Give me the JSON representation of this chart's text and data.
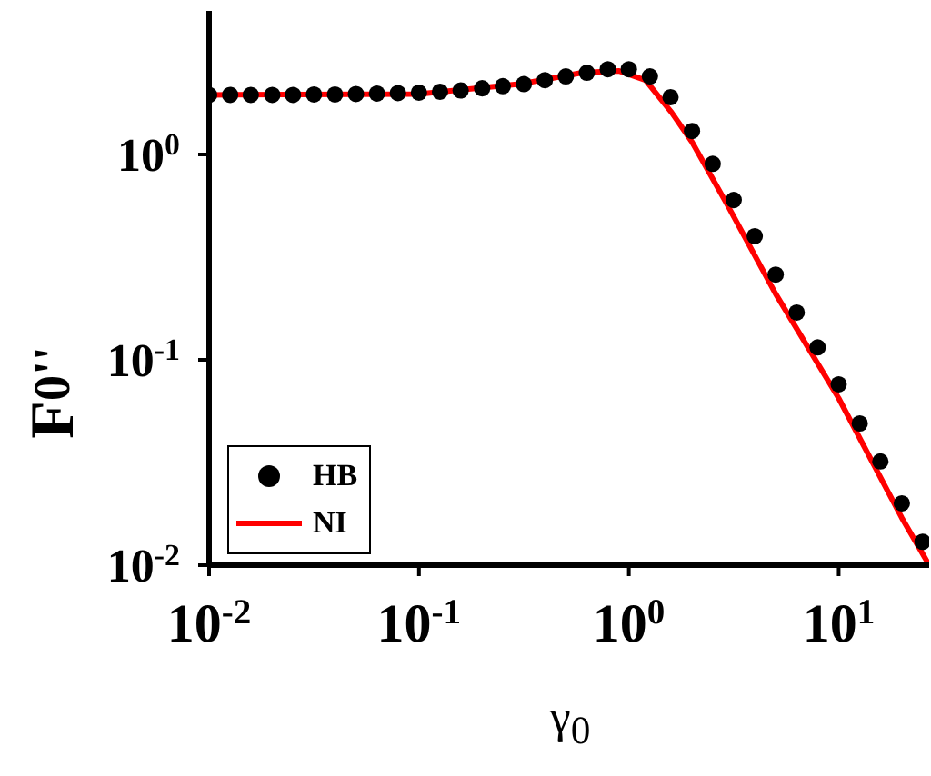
{
  "chart_data": {
    "type": "scatter",
    "xlabel": "γ$_{0}$",
    "ylabel": "F$_{0}$$^{''}$",
    "log": "xy",
    "xlim": [
      0.01,
      27
    ],
    "ylim": [
      0.01,
      5
    ],
    "xticks": [
      {
        "value": 0.01,
        "label": "10$^{-2}$"
      },
      {
        "value": 0.1,
        "label": "10$^{-1}$"
      },
      {
        "value": 1,
        "label": "10$^{0}$"
      },
      {
        "value": 10,
        "label": "10$^{1}$"
      }
    ],
    "yticks": [
      {
        "value": 0.01,
        "label": "10$^{-2}$"
      },
      {
        "value": 0.1,
        "label": "10$^{-1}$"
      },
      {
        "value": 1,
        "label": "10$^{0}$"
      }
    ],
    "legend": "bottom left",
    "series": [
      {
        "name": "HB",
        "marker": "circle",
        "color": "#000000",
        "x": [
          0.01,
          0.0126,
          0.0158,
          0.02,
          0.0251,
          0.0316,
          0.0398,
          0.0501,
          0.0631,
          0.0794,
          0.1,
          0.126,
          0.158,
          0.2,
          0.251,
          0.316,
          0.398,
          0.501,
          0.631,
          0.794,
          1,
          1.26,
          1.58,
          2,
          2.51,
          3.16,
          3.98,
          5.01,
          6.31,
          7.94,
          10,
          12.6,
          15.8,
          20,
          25.1
        ],
        "values": [
          1.95,
          1.95,
          1.95,
          1.95,
          1.95,
          1.96,
          1.96,
          1.97,
          1.98,
          1.99,
          2.0,
          2.02,
          2.05,
          2.1,
          2.15,
          2.2,
          2.3,
          2.4,
          2.5,
          2.6,
          2.6,
          2.4,
          1.9,
          1.3,
          0.9,
          0.6,
          0.4,
          0.26,
          0.17,
          0.115,
          0.076,
          0.049,
          0.032,
          0.02,
          0.013
        ]
      },
      {
        "name": "NI",
        "type": "line",
        "color": "#ff0000",
        "line_style": "solid",
        "x": [
          0.01,
          0.1,
          0.3,
          0.6,
          0.9,
          1.2,
          1.6,
          2,
          3,
          5,
          10,
          20,
          27
        ],
        "values": [
          1.95,
          1.97,
          2.2,
          2.5,
          2.55,
          2.3,
          1.6,
          1.15,
          0.55,
          0.21,
          0.065,
          0.017,
          0.01
        ]
      }
    ]
  }
}
